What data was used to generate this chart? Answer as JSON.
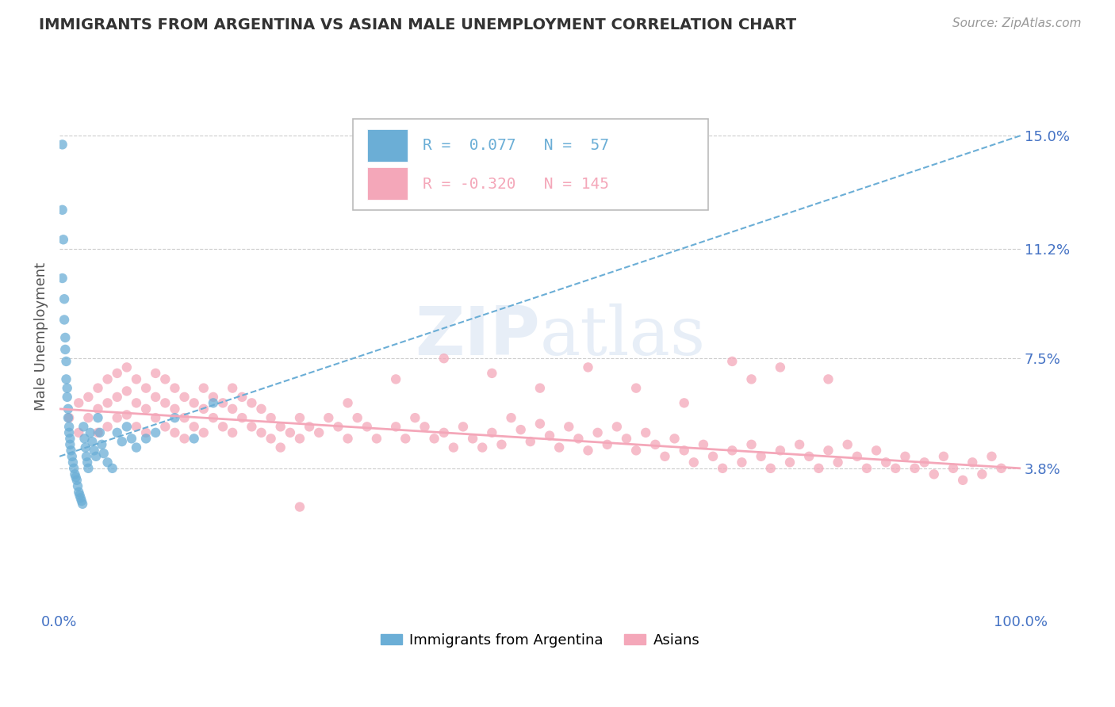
{
  "title": "IMMIGRANTS FROM ARGENTINA VS ASIAN MALE UNEMPLOYMENT CORRELATION CHART",
  "source": "Source: ZipAtlas.com",
  "ylabel": "Male Unemployment",
  "watermark": "ZIPatlas",
  "xlim": [
    0.0,
    1.0
  ],
  "ylim": [
    -0.01,
    0.175
  ],
  "yticks": [
    0.038,
    0.075,
    0.112,
    0.15
  ],
  "ytick_labels": [
    "3.8%",
    "7.5%",
    "11.2%",
    "15.0%"
  ],
  "xtick_labels": [
    "0.0%",
    "100.0%"
  ],
  "blue_R": 0.077,
  "blue_N": 57,
  "pink_R": -0.32,
  "pink_N": 145,
  "blue_color": "#6baed6",
  "pink_color": "#f4a7b9",
  "grid_color": "#cccccc",
  "title_color": "#333333",
  "axis_label_color": "#4472c4",
  "blue_scatter_x": [
    0.003,
    0.003,
    0.003,
    0.004,
    0.005,
    0.005,
    0.006,
    0.006,
    0.007,
    0.007,
    0.008,
    0.008,
    0.009,
    0.009,
    0.01,
    0.01,
    0.011,
    0.011,
    0.012,
    0.013,
    0.014,
    0.015,
    0.016,
    0.017,
    0.018,
    0.019,
    0.02,
    0.021,
    0.022,
    0.023,
    0.024,
    0.025,
    0.026,
    0.027,
    0.028,
    0.029,
    0.03,
    0.032,
    0.034,
    0.036,
    0.038,
    0.04,
    0.042,
    0.044,
    0.046,
    0.05,
    0.055,
    0.06,
    0.065,
    0.07,
    0.075,
    0.08,
    0.09,
    0.1,
    0.12,
    0.14,
    0.16
  ],
  "blue_scatter_y": [
    0.147,
    0.125,
    0.102,
    0.115,
    0.095,
    0.088,
    0.082,
    0.078,
    0.074,
    0.068,
    0.065,
    0.062,
    0.058,
    0.055,
    0.052,
    0.05,
    0.048,
    0.046,
    0.044,
    0.042,
    0.04,
    0.038,
    0.036,
    0.035,
    0.034,
    0.032,
    0.03,
    0.029,
    0.028,
    0.027,
    0.026,
    0.052,
    0.048,
    0.045,
    0.042,
    0.04,
    0.038,
    0.05,
    0.047,
    0.044,
    0.042,
    0.055,
    0.05,
    0.046,
    0.043,
    0.04,
    0.038,
    0.05,
    0.047,
    0.052,
    0.048,
    0.045,
    0.048,
    0.05,
    0.055,
    0.048,
    0.06
  ],
  "pink_scatter_x": [
    0.01,
    0.02,
    0.02,
    0.03,
    0.03,
    0.04,
    0.04,
    0.04,
    0.05,
    0.05,
    0.05,
    0.06,
    0.06,
    0.06,
    0.07,
    0.07,
    0.07,
    0.08,
    0.08,
    0.08,
    0.09,
    0.09,
    0.09,
    0.1,
    0.1,
    0.1,
    0.11,
    0.11,
    0.11,
    0.12,
    0.12,
    0.12,
    0.13,
    0.13,
    0.13,
    0.14,
    0.14,
    0.15,
    0.15,
    0.15,
    0.16,
    0.16,
    0.17,
    0.17,
    0.18,
    0.18,
    0.18,
    0.19,
    0.19,
    0.2,
    0.2,
    0.21,
    0.21,
    0.22,
    0.22,
    0.23,
    0.23,
    0.24,
    0.25,
    0.25,
    0.26,
    0.27,
    0.28,
    0.29,
    0.3,
    0.31,
    0.32,
    0.33,
    0.35,
    0.36,
    0.37,
    0.38,
    0.39,
    0.4,
    0.41,
    0.42,
    0.43,
    0.44,
    0.45,
    0.46,
    0.47,
    0.48,
    0.49,
    0.5,
    0.51,
    0.52,
    0.53,
    0.54,
    0.55,
    0.56,
    0.57,
    0.58,
    0.59,
    0.6,
    0.61,
    0.62,
    0.63,
    0.64,
    0.65,
    0.66,
    0.67,
    0.68,
    0.69,
    0.7,
    0.71,
    0.72,
    0.73,
    0.74,
    0.75,
    0.76,
    0.77,
    0.78,
    0.79,
    0.8,
    0.81,
    0.82,
    0.83,
    0.84,
    0.85,
    0.86,
    0.87,
    0.88,
    0.89,
    0.9,
    0.91,
    0.92,
    0.93,
    0.94,
    0.95,
    0.96,
    0.97,
    0.98,
    0.7,
    0.72,
    0.75,
    0.8,
    0.5,
    0.55,
    0.3,
    0.35,
    0.4,
    0.45,
    0.6,
    0.65,
    0.25
  ],
  "pink_scatter_y": [
    0.055,
    0.06,
    0.05,
    0.062,
    0.055,
    0.065,
    0.058,
    0.05,
    0.068,
    0.06,
    0.052,
    0.07,
    0.062,
    0.055,
    0.072,
    0.064,
    0.056,
    0.068,
    0.06,
    0.052,
    0.065,
    0.058,
    0.05,
    0.07,
    0.062,
    0.055,
    0.068,
    0.06,
    0.052,
    0.065,
    0.058,
    0.05,
    0.062,
    0.055,
    0.048,
    0.06,
    0.052,
    0.065,
    0.058,
    0.05,
    0.062,
    0.055,
    0.06,
    0.052,
    0.065,
    0.058,
    0.05,
    0.062,
    0.055,
    0.06,
    0.052,
    0.058,
    0.05,
    0.055,
    0.048,
    0.052,
    0.045,
    0.05,
    0.055,
    0.048,
    0.052,
    0.05,
    0.055,
    0.052,
    0.048,
    0.055,
    0.052,
    0.048,
    0.052,
    0.048,
    0.055,
    0.052,
    0.048,
    0.05,
    0.045,
    0.052,
    0.048,
    0.045,
    0.05,
    0.046,
    0.055,
    0.051,
    0.047,
    0.053,
    0.049,
    0.045,
    0.052,
    0.048,
    0.044,
    0.05,
    0.046,
    0.052,
    0.048,
    0.044,
    0.05,
    0.046,
    0.042,
    0.048,
    0.044,
    0.04,
    0.046,
    0.042,
    0.038,
    0.044,
    0.04,
    0.046,
    0.042,
    0.038,
    0.044,
    0.04,
    0.046,
    0.042,
    0.038,
    0.044,
    0.04,
    0.046,
    0.042,
    0.038,
    0.044,
    0.04,
    0.038,
    0.042,
    0.038,
    0.04,
    0.036,
    0.042,
    0.038,
    0.034,
    0.04,
    0.036,
    0.042,
    0.038,
    0.074,
    0.068,
    0.072,
    0.068,
    0.065,
    0.072,
    0.06,
    0.068,
    0.075,
    0.07,
    0.065,
    0.06,
    0.025
  ],
  "blue_trend_x": [
    0.0,
    1.0
  ],
  "blue_trend_y": [
    0.042,
    0.15
  ],
  "pink_trend_x": [
    0.0,
    1.0
  ],
  "pink_trend_y": [
    0.058,
    0.038
  ]
}
